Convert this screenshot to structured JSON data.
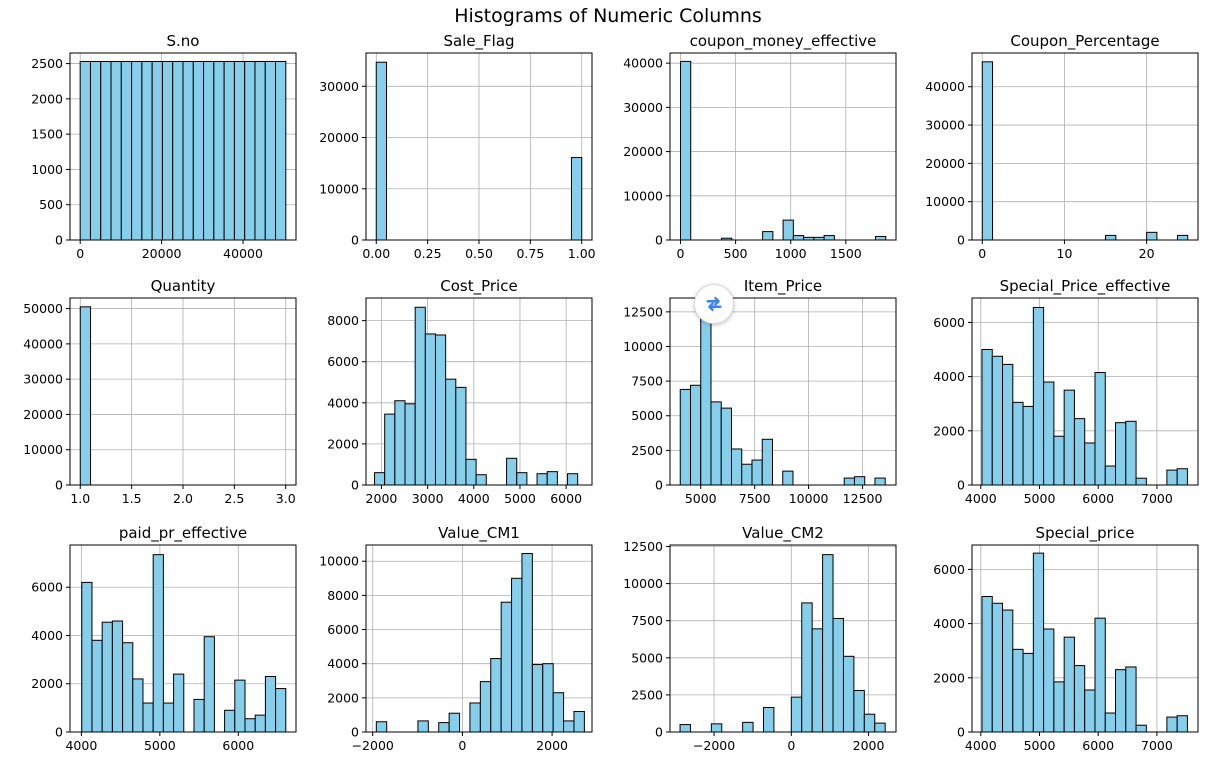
{
  "figure": {
    "title": "Histograms of Numeric Columns",
    "colors": {
      "bar_fill": "#87CEEB",
      "bar_edge": "#000000",
      "grid": "#b0b0b0"
    }
  },
  "overlay": {
    "icon": "refresh-icon",
    "color": "#3b82f6"
  },
  "chart_data": [
    {
      "type": "bar",
      "title": "S.no",
      "grid": true,
      "xlim": [
        -2500,
        53000
      ],
      "ylim": [
        0,
        2650
      ],
      "xticks": [
        0,
        20000,
        40000
      ],
      "yticks": [
        0,
        500,
        1000,
        1500,
        2000,
        2500
      ],
      "bins": [
        [
          0,
          2525,
          2530
        ],
        [
          2525,
          5050,
          2530
        ],
        [
          5050,
          7575,
          2530
        ],
        [
          7575,
          10100,
          2530
        ],
        [
          10100,
          12625,
          2530
        ],
        [
          12625,
          15150,
          2530
        ],
        [
          15150,
          17675,
          2530
        ],
        [
          17675,
          20200,
          2530
        ],
        [
          20200,
          22725,
          2530
        ],
        [
          22725,
          25250,
          2530
        ],
        [
          25250,
          27775,
          2530
        ],
        [
          27775,
          30300,
          2530
        ],
        [
          30300,
          32825,
          2530
        ],
        [
          32825,
          35350,
          2530
        ],
        [
          35350,
          37875,
          2530
        ],
        [
          37875,
          40400,
          2530
        ],
        [
          40400,
          42925,
          2530
        ],
        [
          42925,
          45450,
          2530
        ],
        [
          45450,
          47975,
          2530
        ],
        [
          47975,
          50500,
          2530
        ]
      ]
    },
    {
      "type": "bar",
      "title": "Sale_Flag",
      "grid": true,
      "xlim": [
        -0.05,
        1.05
      ],
      "ylim": [
        0,
        36500
      ],
      "xticks": [
        0.0,
        0.25,
        0.5,
        0.75,
        1.0
      ],
      "xtick_labels": [
        "0.00",
        "0.25",
        "0.50",
        "0.75",
        "1.00"
      ],
      "yticks": [
        0,
        10000,
        20000,
        30000
      ],
      "bins": [
        [
          0.0,
          0.05,
          34700
        ],
        [
          0.95,
          1.0,
          16100
        ]
      ]
    },
    {
      "type": "bar",
      "title": "coupon_money_effective",
      "grid": true,
      "xlim": [
        -95,
        1955
      ],
      "ylim": [
        0,
        42300
      ],
      "xticks": [
        0,
        500,
        1000,
        1500
      ],
      "yticks": [
        0,
        10000,
        20000,
        30000,
        40000
      ],
      "bins": [
        [
          0,
          93,
          40400
        ],
        [
          373,
          466,
          400
        ],
        [
          745,
          838,
          1900
        ],
        [
          931,
          1024,
          4500
        ],
        [
          1024,
          1117,
          1000
        ],
        [
          1117,
          1210,
          600
        ],
        [
          1210,
          1303,
          600
        ],
        [
          1303,
          1396,
          1000
        ],
        [
          1769,
          1862,
          800
        ]
      ]
    },
    {
      "type": "bar",
      "title": "Coupon_Percentage",
      "grid": true,
      "xlim": [
        -1.25,
        26.25
      ],
      "ylim": [
        0,
        48800
      ],
      "xticks": [
        0,
        10,
        20
      ],
      "yticks": [
        0,
        10000,
        20000,
        30000,
        40000
      ],
      "bins": [
        [
          0,
          1.25,
          46500
        ],
        [
          15,
          16.25,
          1200
        ],
        [
          20,
          21.25,
          2000
        ],
        [
          23.75,
          25,
          1200
        ]
      ]
    },
    {
      "type": "bar",
      "title": "Quantity",
      "grid": true,
      "xlim": [
        0.9,
        3.1
      ],
      "ylim": [
        0,
        53000
      ],
      "xticks": [
        1.0,
        1.5,
        2.0,
        2.5,
        3.0
      ],
      "xtick_labels": [
        "1.0",
        "1.5",
        "2.0",
        "2.5",
        "3.0"
      ],
      "yticks": [
        0,
        10000,
        20000,
        30000,
        40000,
        50000
      ],
      "bins": [
        [
          1.0,
          1.1,
          50500
        ],
        [
          1.9,
          2.0,
          15
        ]
      ]
    },
    {
      "type": "bar",
      "title": "Cost_Price",
      "grid": true,
      "xlim": [
        1665,
        6560
      ],
      "ylim": [
        0,
        9100
      ],
      "xticks": [
        2000,
        3000,
        4000,
        5000,
        6000
      ],
      "yticks": [
        0,
        2000,
        4000,
        6000,
        8000
      ],
      "bins": [
        [
          1850,
          2070,
          600
        ],
        [
          2070,
          2290,
          3450
        ],
        [
          2290,
          2510,
          4100
        ],
        [
          2510,
          2730,
          3950
        ],
        [
          2730,
          2950,
          8650
        ],
        [
          2950,
          3170,
          7350
        ],
        [
          3170,
          3390,
          7300
        ],
        [
          3390,
          3610,
          5150
        ],
        [
          3610,
          3830,
          4750
        ],
        [
          3830,
          4050,
          1250
        ],
        [
          4050,
          4270,
          500
        ],
        [
          4710,
          4930,
          1300
        ],
        [
          4930,
          5150,
          600
        ],
        [
          5370,
          5590,
          550
        ],
        [
          5590,
          5810,
          650
        ],
        [
          6030,
          6250,
          550
        ]
      ]
    },
    {
      "type": "bar",
      "title": "Item_Price",
      "grid": true,
      "xlim": [
        3575,
        14050
      ],
      "ylim": [
        0,
        13500
      ],
      "xticks": [
        5000,
        7500,
        10000,
        12500
      ],
      "yticks": [
        0,
        2500,
        5000,
        7500,
        10000,
        12500
      ],
      "bins": [
        [
          4050,
          4525,
          6900
        ],
        [
          4525,
          5000,
          7200
        ],
        [
          5000,
          5475,
          12900
        ],
        [
          5475,
          5950,
          6000
        ],
        [
          5950,
          6425,
          5550
        ],
        [
          6425,
          6900,
          2600
        ],
        [
          6900,
          7375,
          1500
        ],
        [
          7375,
          7850,
          1800
        ],
        [
          7850,
          8325,
          3300
        ],
        [
          8800,
          9275,
          1000
        ],
        [
          11650,
          12125,
          500
        ],
        [
          12125,
          12600,
          600
        ],
        [
          13075,
          13550,
          500
        ]
      ]
    },
    {
      "type": "bar",
      "title": "Special_Price_effective",
      "grid": true,
      "xlim": [
        3850,
        7700
      ],
      "ylim": [
        0,
        6900
      ],
      "xticks": [
        4000,
        5000,
        6000,
        7000
      ],
      "yticks": [
        0,
        2000,
        4000,
        6000
      ],
      "bins": [
        [
          4020,
          4195,
          5000
        ],
        [
          4195,
          4370,
          4750
        ],
        [
          4370,
          4545,
          4450
        ],
        [
          4545,
          4720,
          3050
        ],
        [
          4720,
          4895,
          2900
        ],
        [
          4895,
          5070,
          6550
        ],
        [
          5070,
          5245,
          3800
        ],
        [
          5245,
          5420,
          1800
        ],
        [
          5420,
          5595,
          3500
        ],
        [
          5595,
          5770,
          2450
        ],
        [
          5770,
          5945,
          1550
        ],
        [
          5945,
          6120,
          4150
        ],
        [
          6120,
          6295,
          700
        ],
        [
          6295,
          6470,
          2300
        ],
        [
          6470,
          6645,
          2350
        ],
        [
          6645,
          6820,
          250
        ],
        [
          7170,
          7345,
          550
        ],
        [
          7345,
          7520,
          600
        ]
      ]
    },
    {
      "type": "bar",
      "title": "paid_pr_effective",
      "grid": true,
      "xlim": [
        3855,
        6735
      ],
      "ylim": [
        0,
        7750
      ],
      "xticks": [
        4000,
        5000,
        6000
      ],
      "yticks": [
        0,
        2000,
        4000,
        6000
      ],
      "bins": [
        [
          4005,
          4135,
          6200
        ],
        [
          4135,
          4265,
          3800
        ],
        [
          4265,
          4395,
          4550
        ],
        [
          4395,
          4525,
          4600
        ],
        [
          4525,
          4655,
          3700
        ],
        [
          4655,
          4785,
          2200
        ],
        [
          4785,
          4915,
          1200
        ],
        [
          4915,
          5045,
          7350
        ],
        [
          5045,
          5175,
          1200
        ],
        [
          5175,
          5305,
          2400
        ],
        [
          5435,
          5565,
          1350
        ],
        [
          5565,
          5695,
          3950
        ],
        [
          5825,
          5955,
          900
        ],
        [
          5955,
          6085,
          2150
        ],
        [
          6085,
          6215,
          550
        ],
        [
          6215,
          6345,
          700
        ],
        [
          6345,
          6475,
          2300
        ],
        [
          6475,
          6605,
          1800
        ]
      ]
    },
    {
      "type": "bar",
      "title": "Value_CM1",
      "grid": true,
      "xlim": [
        -2150,
        2890
      ],
      "ylim": [
        0,
        10950
      ],
      "xticks": [
        -2000,
        0,
        2000
      ],
      "xtick_labels": [
        "−2000",
        "0",
        "2000"
      ],
      "yticks": [
        0,
        2000,
        4000,
        6000,
        8000,
        10000
      ],
      "bins": [
        [
          -1920,
          -1688,
          600
        ],
        [
          -992,
          -760,
          650
        ],
        [
          -528,
          -296,
          550
        ],
        [
          -296,
          -64,
          1100
        ],
        [
          168,
          400,
          1700
        ],
        [
          400,
          632,
          2950
        ],
        [
          632,
          864,
          4300
        ],
        [
          864,
          1096,
          7600
        ],
        [
          1096,
          1328,
          9000
        ],
        [
          1328,
          1560,
          10450
        ],
        [
          1560,
          1792,
          3950
        ],
        [
          1792,
          2024,
          4000
        ],
        [
          2024,
          2256,
          2300
        ],
        [
          2256,
          2488,
          650
        ],
        [
          2488,
          2720,
          1200
        ]
      ]
    },
    {
      "type": "bar",
      "title": "Value_CM2",
      "grid": true,
      "xlim": [
        -3140,
        2710
      ],
      "ylim": [
        0,
        12600
      ],
      "xticks": [
        -2000,
        0,
        2000
      ],
      "xtick_labels": [
        "−2000",
        "0",
        "2000"
      ],
      "yticks": [
        0,
        2500,
        5000,
        7500,
        10000,
        12500
      ],
      "bins": [
        [
          -2880,
          -2610,
          500
        ],
        [
          -2070,
          -1800,
          550
        ],
        [
          -1260,
          -990,
          650
        ],
        [
          -720,
          -450,
          1650
        ],
        [
          0,
          270,
          2350
        ],
        [
          270,
          540,
          8700
        ],
        [
          540,
          810,
          6950
        ],
        [
          810,
          1080,
          11950
        ],
        [
          1080,
          1350,
          7650
        ],
        [
          1350,
          1620,
          5100
        ],
        [
          1620,
          1890,
          2800
        ],
        [
          1890,
          2160,
          1200
        ],
        [
          2160,
          2430,
          600
        ]
      ]
    },
    {
      "type": "bar",
      "title": "Special_price",
      "grid": true,
      "xlim": [
        3850,
        7700
      ],
      "ylim": [
        0,
        6900
      ],
      "xticks": [
        4000,
        5000,
        6000,
        7000
      ],
      "yticks": [
        0,
        2000,
        4000,
        6000
      ],
      "bins": [
        [
          4020,
          4195,
          5000
        ],
        [
          4195,
          4370,
          4750
        ],
        [
          4370,
          4545,
          4500
        ],
        [
          4545,
          4720,
          3050
        ],
        [
          4720,
          4895,
          2900
        ],
        [
          4895,
          5070,
          6600
        ],
        [
          5070,
          5245,
          3800
        ],
        [
          5245,
          5420,
          1850
        ],
        [
          5420,
          5595,
          3500
        ],
        [
          5595,
          5770,
          2450
        ],
        [
          5770,
          5945,
          1550
        ],
        [
          5945,
          6120,
          4200
        ],
        [
          6120,
          6295,
          700
        ],
        [
          6295,
          6470,
          2300
        ],
        [
          6470,
          6645,
          2400
        ],
        [
          6645,
          6820,
          250
        ],
        [
          7170,
          7345,
          550
        ],
        [
          7345,
          7520,
          600
        ]
      ]
    }
  ]
}
